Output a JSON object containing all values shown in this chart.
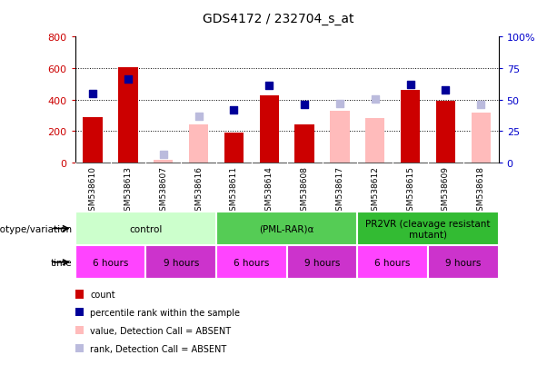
{
  "title": "GDS4172 / 232704_s_at",
  "samples": [
    "GSM538610",
    "GSM538613",
    "GSM538607",
    "GSM538616",
    "GSM538611",
    "GSM538614",
    "GSM538608",
    "GSM538617",
    "GSM538612",
    "GSM538615",
    "GSM538609",
    "GSM538618"
  ],
  "red_bars": [
    290,
    605,
    null,
    null,
    190,
    430,
    245,
    null,
    null,
    460,
    390,
    null
  ],
  "pink_bars": [
    null,
    null,
    15,
    245,
    null,
    null,
    null,
    330,
    285,
    null,
    null,
    315
  ],
  "blue_squares": [
    440,
    530,
    null,
    null,
    335,
    490,
    370,
    null,
    null,
    495,
    460,
    null
  ],
  "lightblue_squares": [
    null,
    null,
    50,
    295,
    null,
    null,
    null,
    375,
    405,
    null,
    null,
    370
  ],
  "ylim_left": [
    0,
    800
  ],
  "ylim_right": [
    0,
    100
  ],
  "yticks_left": [
    0,
    200,
    400,
    600,
    800
  ],
  "yticks_right": [
    0,
    25,
    50,
    75,
    100
  ],
  "yticklabels_right": [
    "0",
    "25",
    "50",
    "75",
    "100%"
  ],
  "groups": [
    {
      "label": "control",
      "color": "#ccffcc",
      "start": 0,
      "end": 4
    },
    {
      "label": "(PML-RAR)α",
      "color": "#55cc55",
      "start": 4,
      "end": 8
    },
    {
      "label": "PR2VR (cleavage resistant\nmutant)",
      "color": "#33bb33",
      "start": 8,
      "end": 12
    }
  ],
  "time_groups": [
    {
      "label": "6 hours",
      "color": "#ff44ff",
      "start": 0,
      "end": 2
    },
    {
      "label": "9 hours",
      "color": "#cc33cc",
      "start": 2,
      "end": 4
    },
    {
      "label": "6 hours",
      "color": "#ff44ff",
      "start": 4,
      "end": 6
    },
    {
      "label": "9 hours",
      "color": "#cc33cc",
      "start": 6,
      "end": 8
    },
    {
      "label": "6 hours",
      "color": "#ff44ff",
      "start": 8,
      "end": 10
    },
    {
      "label": "9 hours",
      "color": "#cc33cc",
      "start": 10,
      "end": 12
    }
  ],
  "legend_items": [
    {
      "label": "count",
      "color": "#cc0000"
    },
    {
      "label": "percentile rank within the sample",
      "color": "#000099"
    },
    {
      "label": "value, Detection Call = ABSENT",
      "color": "#ffbbbb"
    },
    {
      "label": "rank, Detection Call = ABSENT",
      "color": "#bbbbdd"
    }
  ],
  "genotype_label": "genotype/variation",
  "time_label": "time",
  "left_color": "#cc0000",
  "pink_color": "#ffbbbb",
  "blue_color": "#000099",
  "lightblue_color": "#bbbbdd",
  "bg_color": "#ffffff",
  "xtick_bg": "#cccccc",
  "grid_color": "#000000"
}
